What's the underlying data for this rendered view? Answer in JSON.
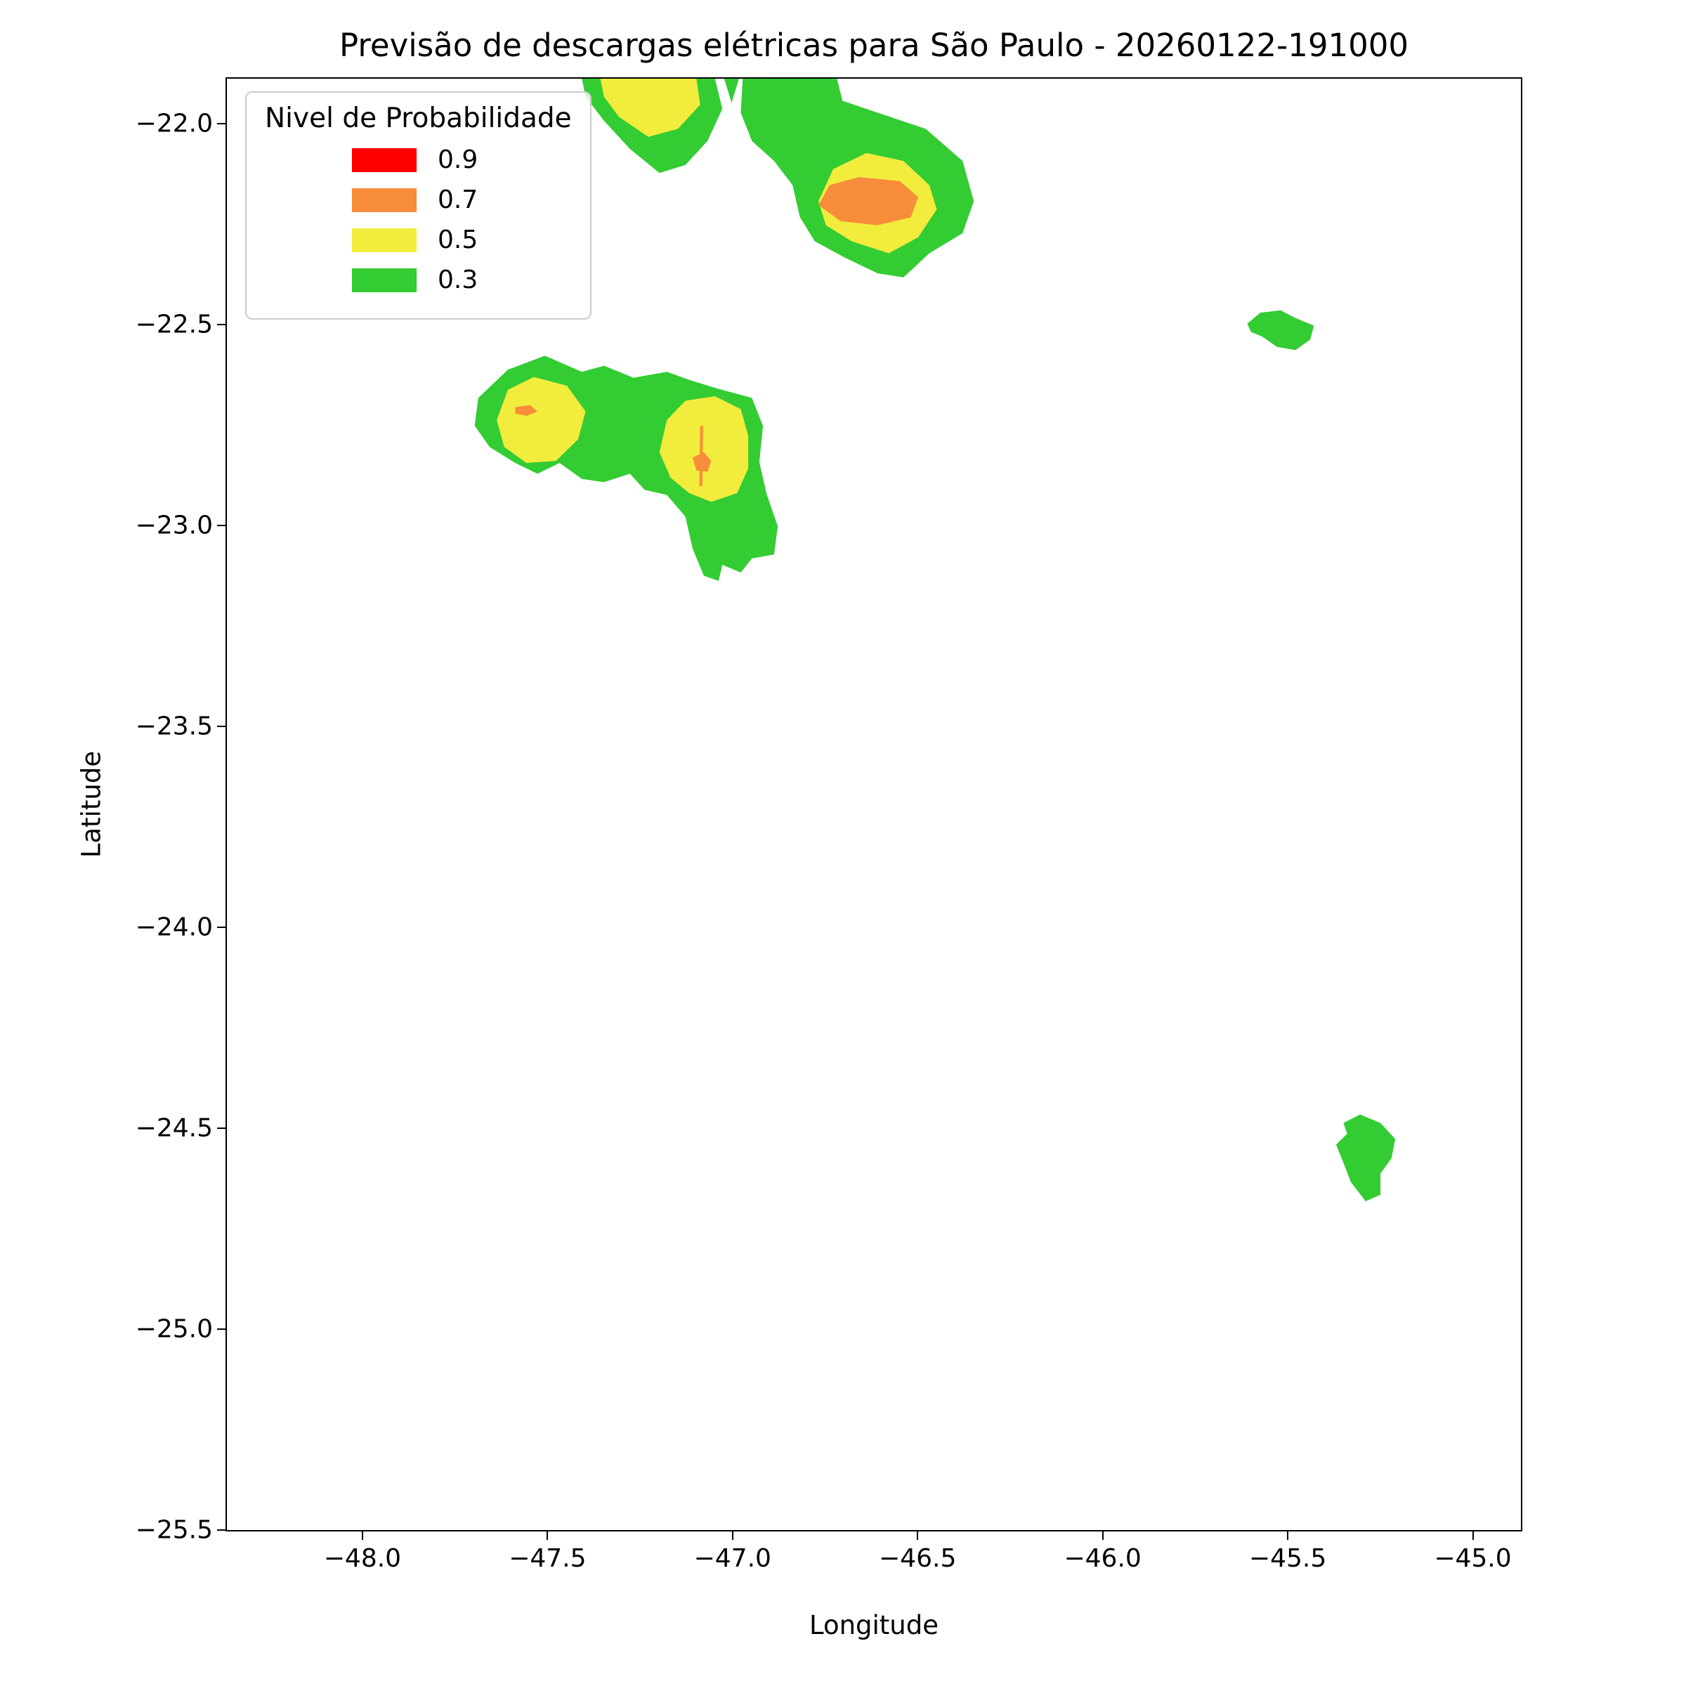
{
  "chart_data": {
    "type": "heatmap",
    "subtype": "filled-contour-map",
    "title": "Previsão de descargas elétricas para São Paulo - 20260122-191000",
    "xlabel": "Longitude",
    "ylabel": "Latitude",
    "xlim": [
      -48.37,
      -44.87
    ],
    "ylim": [
      -25.5,
      -21.885
    ],
    "xticks": [
      -48.0,
      -47.5,
      -47.0,
      -46.5,
      -46.0,
      -45.5,
      -45.0
    ],
    "yticks": [
      -22.0,
      -22.5,
      -23.0,
      -23.5,
      -24.0,
      -24.5,
      -25.0,
      -25.5
    ],
    "grid": false,
    "legend": {
      "title": "Nivel de Probabilidade",
      "position": "upper-left",
      "entries": [
        {
          "label": "0.9",
          "value": 0.9,
          "color": "#FF0000"
        },
        {
          "label": "0.7",
          "value": 0.7,
          "color": "#F78D3A"
        },
        {
          "label": "0.5",
          "value": 0.5,
          "color": "#F2EC3D"
        },
        {
          "label": "0.3",
          "value": 0.3,
          "color": "#33CC33"
        }
      ]
    },
    "regions": [
      {
        "name": "north-west-cell-green",
        "level": 0.3,
        "points": [
          [
            -47.41,
            -21.885
          ],
          [
            -47.05,
            -21.885
          ],
          [
            -47.03,
            -21.96
          ],
          [
            -47.07,
            -22.04
          ],
          [
            -47.13,
            -22.1
          ],
          [
            -47.2,
            -22.12
          ],
          [
            -47.28,
            -22.06
          ],
          [
            -47.35,
            -21.99
          ],
          [
            -47.4,
            -21.93
          ]
        ]
      },
      {
        "name": "north-west-cell-yellow",
        "level": 0.5,
        "points": [
          [
            -47.36,
            -21.885
          ],
          [
            -47.1,
            -21.885
          ],
          [
            -47.09,
            -21.95
          ],
          [
            -47.15,
            -22.01
          ],
          [
            -47.23,
            -22.03
          ],
          [
            -47.31,
            -21.98
          ],
          [
            -47.35,
            -21.93
          ]
        ]
      },
      {
        "name": "north-wedge-green",
        "level": 0.3,
        "points": [
          [
            -47.025,
            -21.885
          ],
          [
            -46.985,
            -21.885
          ],
          [
            -47.005,
            -21.945
          ]
        ]
      },
      {
        "name": "north-main-cell-green",
        "level": 0.3,
        "points": [
          [
            -46.975,
            -21.885
          ],
          [
            -46.72,
            -21.885
          ],
          [
            -46.705,
            -21.94
          ],
          [
            -46.48,
            -22.01
          ],
          [
            -46.38,
            -22.09
          ],
          [
            -46.35,
            -22.19
          ],
          [
            -46.38,
            -22.27
          ],
          [
            -46.47,
            -22.32
          ],
          [
            -46.54,
            -22.38
          ],
          [
            -46.61,
            -22.37
          ],
          [
            -46.7,
            -22.33
          ],
          [
            -46.78,
            -22.29
          ],
          [
            -46.82,
            -22.23
          ],
          [
            -46.84,
            -22.15
          ],
          [
            -46.89,
            -22.09
          ],
          [
            -46.95,
            -22.04
          ],
          [
            -46.98,
            -21.97
          ]
        ]
      },
      {
        "name": "north-main-cell-yellow",
        "level": 0.5,
        "points": [
          [
            -46.77,
            -22.19
          ],
          [
            -46.73,
            -22.11
          ],
          [
            -46.64,
            -22.07
          ],
          [
            -46.54,
            -22.09
          ],
          [
            -46.47,
            -22.15
          ],
          [
            -46.45,
            -22.21
          ],
          [
            -46.5,
            -22.28
          ],
          [
            -46.58,
            -22.32
          ],
          [
            -46.68,
            -22.29
          ],
          [
            -46.75,
            -22.25
          ]
        ]
      },
      {
        "name": "north-main-cell-orange",
        "level": 0.7,
        "points": [
          [
            -46.77,
            -22.2
          ],
          [
            -46.74,
            -22.15
          ],
          [
            -46.66,
            -22.13
          ],
          [
            -46.55,
            -22.14
          ],
          [
            -46.5,
            -22.18
          ],
          [
            -46.52,
            -22.23
          ],
          [
            -46.61,
            -22.25
          ],
          [
            -46.71,
            -22.24
          ]
        ]
      },
      {
        "name": "central-cell-green",
        "level": 0.3,
        "points": [
          [
            -47.69,
            -22.68
          ],
          [
            -47.61,
            -22.61
          ],
          [
            -47.51,
            -22.575
          ],
          [
            -47.41,
            -22.615
          ],
          [
            -47.35,
            -22.6
          ],
          [
            -47.27,
            -22.63
          ],
          [
            -47.18,
            -22.615
          ],
          [
            -47.12,
            -22.635
          ],
          [
            -47.05,
            -22.655
          ],
          [
            -46.95,
            -22.68
          ],
          [
            -46.92,
            -22.75
          ],
          [
            -46.93,
            -22.84
          ],
          [
            -46.91,
            -22.92
          ],
          [
            -46.88,
            -23.0
          ],
          [
            -46.89,
            -23.07
          ],
          [
            -46.95,
            -23.08
          ],
          [
            -46.98,
            -23.115
          ],
          [
            -47.03,
            -23.096
          ],
          [
            -47.04,
            -23.136
          ],
          [
            -47.08,
            -23.123
          ],
          [
            -47.11,
            -23.056
          ],
          [
            -47.13,
            -22.976
          ],
          [
            -47.18,
            -22.922
          ],
          [
            -47.24,
            -22.909
          ],
          [
            -47.28,
            -22.869
          ],
          [
            -47.35,
            -22.89
          ],
          [
            -47.41,
            -22.882
          ],
          [
            -47.47,
            -22.842
          ],
          [
            -47.53,
            -22.869
          ],
          [
            -47.59,
            -22.842
          ],
          [
            -47.66,
            -22.802
          ],
          [
            -47.7,
            -22.749
          ]
        ]
      },
      {
        "name": "central-west-yellow",
        "level": 0.5,
        "points": [
          [
            -47.64,
            -22.735
          ],
          [
            -47.61,
            -22.66
          ],
          [
            -47.54,
            -22.628
          ],
          [
            -47.45,
            -22.65
          ],
          [
            -47.4,
            -22.714
          ],
          [
            -47.42,
            -22.783
          ],
          [
            -47.48,
            -22.837
          ],
          [
            -47.56,
            -22.842
          ],
          [
            -47.62,
            -22.802
          ]
        ]
      },
      {
        "name": "central-east-yellow",
        "level": 0.5,
        "points": [
          [
            -47.2,
            -22.815
          ],
          [
            -47.18,
            -22.735
          ],
          [
            -47.13,
            -22.687
          ],
          [
            -47.05,
            -22.676
          ],
          [
            -46.98,
            -22.708
          ],
          [
            -46.96,
            -22.775
          ],
          [
            -46.96,
            -22.856
          ],
          [
            -46.99,
            -22.917
          ],
          [
            -47.06,
            -22.939
          ],
          [
            -47.12,
            -22.917
          ],
          [
            -47.17,
            -22.879
          ]
        ]
      },
      {
        "name": "central-west-orange",
        "level": 0.7,
        "points": [
          [
            -47.59,
            -22.703
          ],
          [
            -47.55,
            -22.698
          ],
          [
            -47.53,
            -22.714
          ],
          [
            -47.56,
            -22.725
          ],
          [
            -47.59,
            -22.719
          ]
        ]
      },
      {
        "name": "central-east-orange",
        "level": 0.7,
        "points": [
          [
            -47.11,
            -22.829
          ],
          [
            -47.08,
            -22.815
          ],
          [
            -47.06,
            -22.837
          ],
          [
            -47.07,
            -22.864
          ],
          [
            -47.1,
            -22.861
          ]
        ]
      },
      {
        "name": "central-east-orange-sliver",
        "level": 0.7,
        "points": [
          [
            -47.09,
            -22.75
          ],
          [
            -47.082,
            -22.75
          ],
          [
            -47.084,
            -22.9
          ],
          [
            -47.092,
            -22.9
          ]
        ]
      },
      {
        "name": "east-small-cell-green",
        "level": 0.3,
        "points": [
          [
            -45.61,
            -22.495
          ],
          [
            -45.575,
            -22.468
          ],
          [
            -45.52,
            -22.462
          ],
          [
            -45.48,
            -22.481
          ],
          [
            -45.43,
            -22.5
          ],
          [
            -45.44,
            -22.535
          ],
          [
            -45.48,
            -22.561
          ],
          [
            -45.53,
            -22.553
          ],
          [
            -45.57,
            -22.527
          ],
          [
            -45.6,
            -22.516
          ]
        ]
      },
      {
        "name": "south-east-cell-green",
        "level": 0.3,
        "points": [
          [
            -45.35,
            -24.486
          ],
          [
            -45.305,
            -24.465
          ],
          [
            -45.25,
            -24.486
          ],
          [
            -45.21,
            -24.526
          ],
          [
            -45.22,
            -24.574
          ],
          [
            -45.25,
            -24.612
          ],
          [
            -45.25,
            -24.665
          ],
          [
            -45.29,
            -24.681
          ],
          [
            -45.33,
            -24.633
          ],
          [
            -45.35,
            -24.585
          ],
          [
            -45.37,
            -24.54
          ],
          [
            -45.34,
            -24.513
          ]
        ]
      }
    ]
  }
}
